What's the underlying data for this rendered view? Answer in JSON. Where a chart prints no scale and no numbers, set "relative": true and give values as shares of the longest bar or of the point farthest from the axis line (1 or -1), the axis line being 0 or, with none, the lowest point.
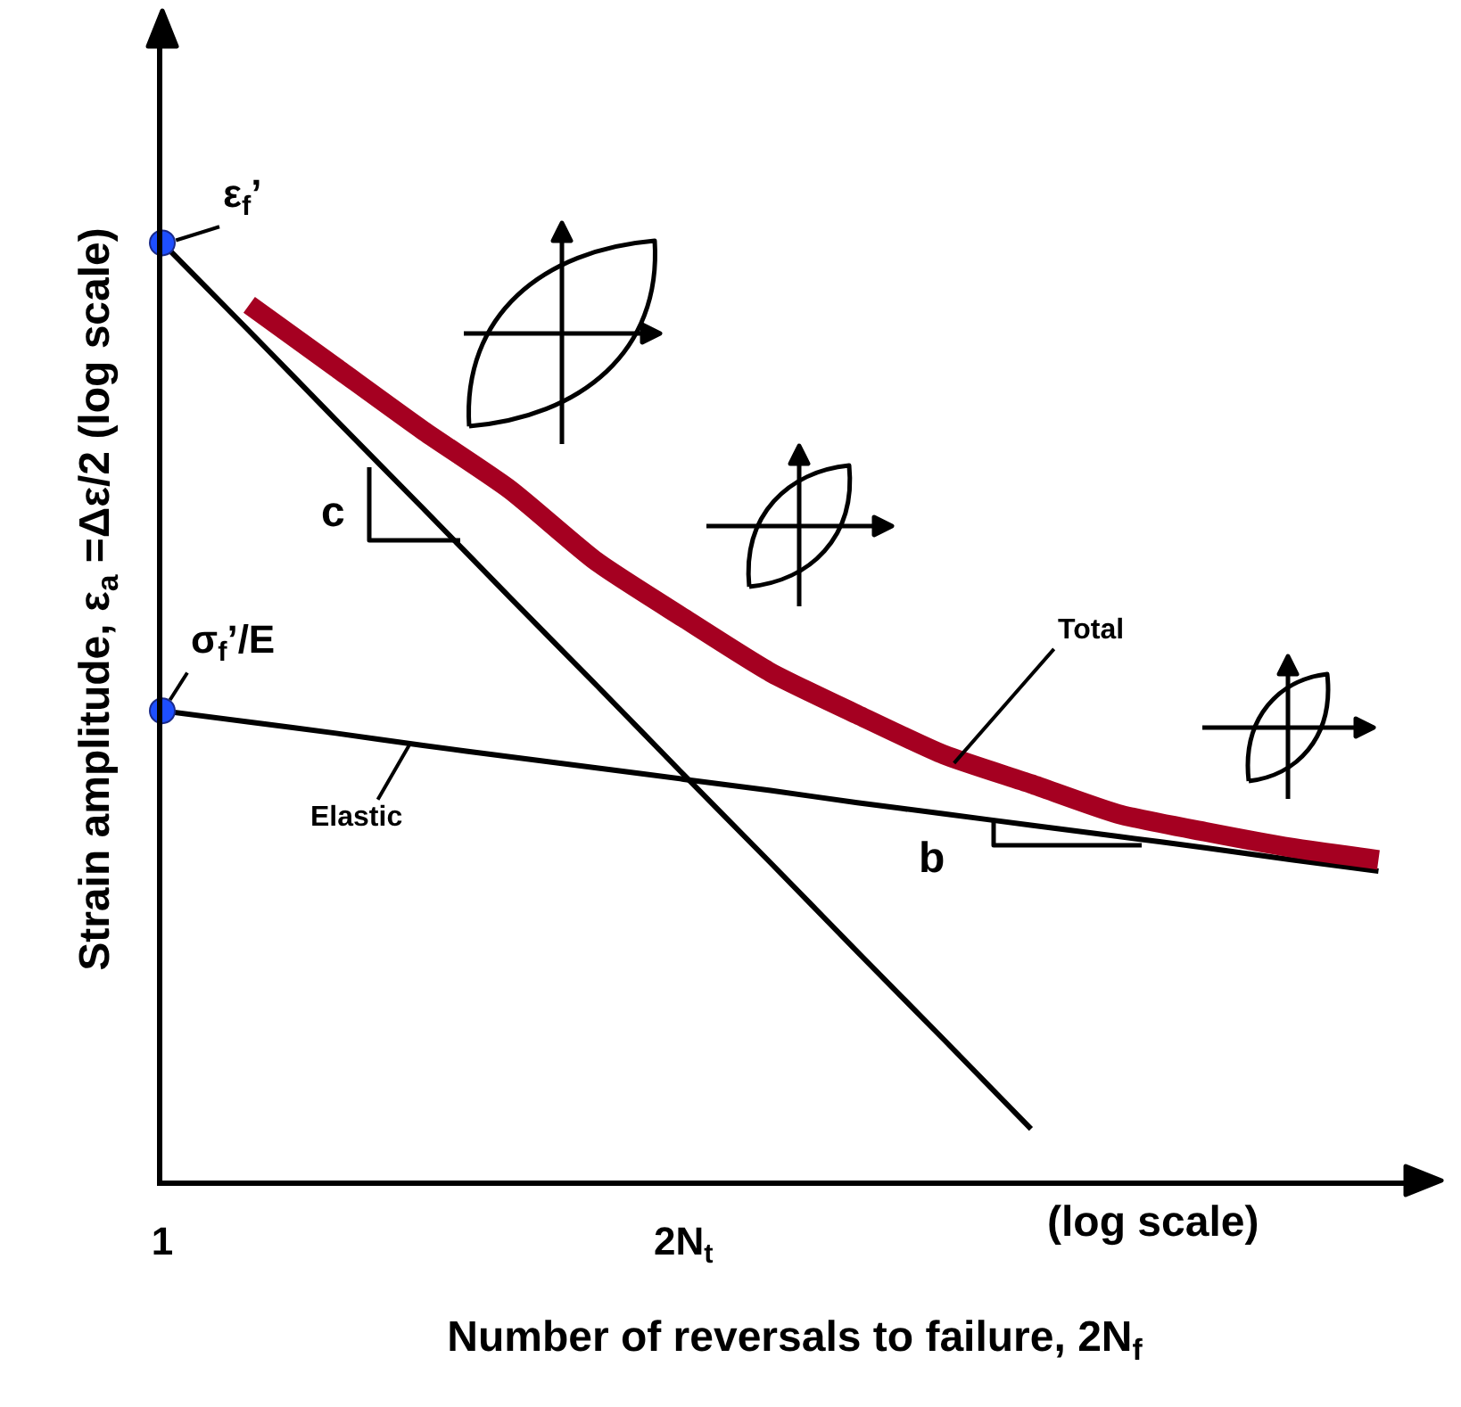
{
  "chart_data": {
    "type": "line",
    "relative": true,
    "xlabel": "Number of reversals to failure, 2N$_{f}$",
    "ylabel": "Strain amplitude, ε$_{a}$ =Δε/2 (log scale)",
    "categories": [
      "1",
      null,
      null,
      null,
      null,
      null,
      "2N$_{t}$",
      null,
      null,
      null,
      null,
      null,
      null,
      null,
      null
    ],
    "grid": false,
    "marker": "none",
    "line_style": "solid",
    "series": [
      {
        "color": "#000000",
        "values": [
          1,
          0.906,
          0.811,
          0.717,
          0.622,
          0.528,
          0.433,
          0.339,
          0.244,
          0.15,
          0.055,
          null,
          null,
          null,
          null
        ]
      },
      {
        "color": "#000000",
        "values": [
          0.501,
          0.489,
          0.477,
          0.464,
          0.452,
          0.44,
          0.428,
          0.416,
          0.403,
          0.391,
          0.379,
          0.367,
          0.355,
          0.342,
          0.33
        ]
      },
      {
        "color": "#a50021",
        "values": [
          null,
          0.934,
          0.867,
          0.8,
          0.737,
          0.66,
          0.6,
          0.542,
          0.497,
          0.454,
          0.423,
          0.391,
          0.372,
          0.355,
          0.342
        ]
      },
      {
        "type": "scatter",
        "marker": "circle",
        "color": "#1e4fff",
        "values": [
          1,
          null,
          null,
          null,
          null,
          null,
          null,
          null,
          null,
          null,
          null,
          null,
          null,
          null,
          null
        ]
      },
      {
        "type": "scatter",
        "marker": "circle",
        "color": "#1e4fff",
        "values": [
          0.501,
          null,
          null,
          null,
          null,
          null,
          null,
          null,
          null,
          null,
          null,
          null,
          null,
          null,
          null
        ]
      }
    ],
    "annotations": [
      "ε$_{f}$’",
      "σ$_{f}$’/E",
      "c",
      "b",
      "Total",
      "Elastic",
      "(log scale)"
    ]
  }
}
